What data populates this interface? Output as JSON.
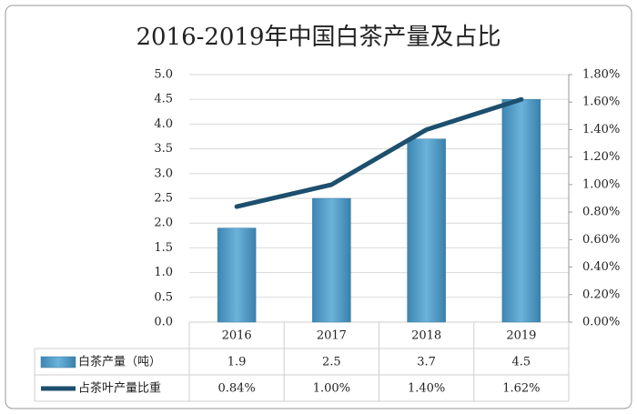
{
  "chart_data": {
    "type": "bar-line",
    "title": "2016-2019年中国白茶产量及占比",
    "categories": [
      "2016",
      "2017",
      "2018",
      "2019"
    ],
    "series": [
      {
        "name": "白茶产量（吨）",
        "type": "bar",
        "color": "#4f9cc8",
        "values": [
          1.9,
          2.5,
          3.7,
          4.5
        ]
      },
      {
        "name": "占茶叶产量比重",
        "type": "line",
        "axis": "y2",
        "color": "#1d4f6e",
        "values": [
          0.84,
          1.0,
          1.4,
          1.62
        ],
        "value_labels": [
          "0.84%",
          "1.00%",
          "1.40%",
          "1.62%"
        ]
      }
    ],
    "ylim": [
      0,
      5
    ],
    "yticks": [
      {
        "value": 0,
        "label": "0.0"
      },
      0.5,
      {
        "value": 1,
        "label": "1.0"
      },
      1.5,
      {
        "value": 2,
        "label": "2.0"
      },
      2.5,
      {
        "value": 3,
        "label": "3.0"
      },
      3.5,
      {
        "value": 4,
        "label": "4.0"
      },
      4.5,
      {
        "value": 5,
        "label": "5.0"
      }
    ],
    "y2lim": [
      0,
      1.8
    ],
    "y2ticks": [
      {
        "value": 0,
        "label": "0.00%"
      },
      {
        "value": 0.2,
        "label": "0.20%"
      },
      {
        "value": 0.4,
        "label": "0.40%"
      },
      {
        "value": 0.6,
        "label": "0.60%"
      },
      {
        "value": 0.8,
        "label": "0.80%"
      },
      {
        "value": 1.0,
        "label": "1.00%"
      },
      {
        "value": 1.2,
        "label": "1.20%"
      },
      {
        "value": 1.4,
        "label": "1.40%"
      },
      {
        "value": 1.6,
        "label": "1.60%"
      },
      {
        "value": 1.8,
        "label": "1.80%"
      }
    ],
    "grid": true,
    "data_table": true
  }
}
